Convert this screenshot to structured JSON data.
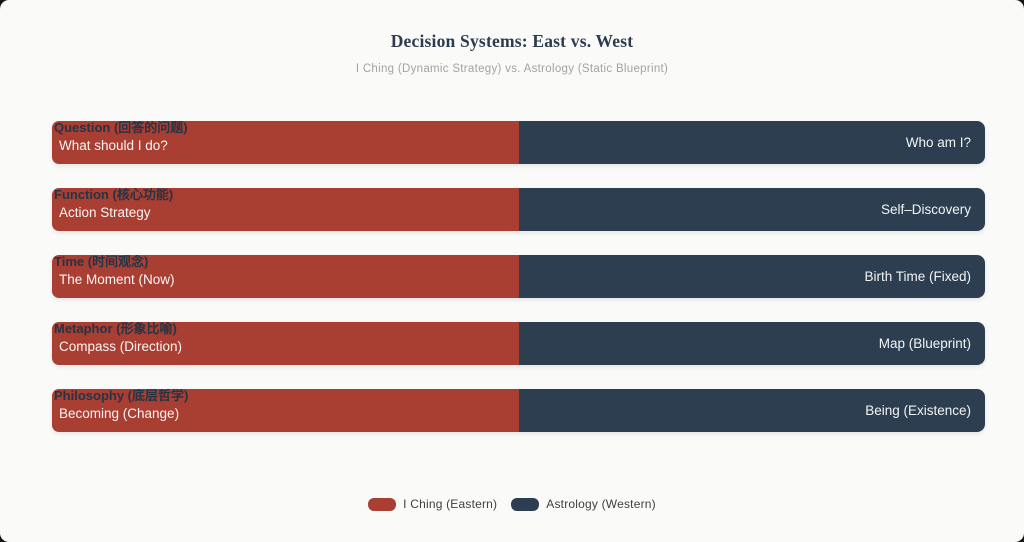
{
  "header": {
    "title": "Decision Systems: East vs. West",
    "subtitle": "I Ching (Dynamic Strategy) vs. Astrology (Static Blueprint)"
  },
  "colors": {
    "iching_red": "#A93E32",
    "astrology_navy": "#2C3E50",
    "background": "#FAFAF9",
    "category_label": "#263445",
    "title_text": "#2E3B4E",
    "subtitle_text": "#A3A3A3"
  },
  "chart_data": {
    "type": "bar",
    "orientation": "horizontal",
    "title": "Decision Systems: East vs. West",
    "subtitle": "I Ching (Dynamic Strategy) vs. Astrology (Static Blueprint)",
    "legend_position": "bottom",
    "grid": false,
    "series": [
      {
        "name": "I Ching (Eastern)",
        "color": "#A93E32",
        "split_percent": 50
      },
      {
        "name": "Astrology (Western)",
        "color": "#2C3E50",
        "split_percent": 50
      }
    ],
    "rows": [
      {
        "category": "Question (回答的问题)",
        "iching": "What should I do?",
        "astrology": "Who am I?",
        "split": [
          50,
          50
        ]
      },
      {
        "category": "Function (核心功能)",
        "iching": "Action Strategy",
        "astrology": "Self–Discovery",
        "split": [
          50,
          50
        ]
      },
      {
        "category": "Time (时间观念)",
        "iching": "The Moment (Now)",
        "astrology": "Birth Time (Fixed)",
        "split": [
          50,
          50
        ]
      },
      {
        "category": "Metaphor (形象比喻)",
        "iching": "Compass (Direction)",
        "astrology": "Map (Blueprint)",
        "split": [
          50,
          50
        ]
      },
      {
        "category": "Philosophy (底层哲学)",
        "iching": "Becoming (Change)",
        "astrology": "Being (Existence)",
        "split": [
          50,
          50
        ]
      }
    ]
  },
  "legend": {
    "items": [
      {
        "label": "I Ching (Eastern)",
        "color": "#A93E32"
      },
      {
        "label": "Astrology (Western)",
        "color": "#2C3E50"
      }
    ]
  }
}
